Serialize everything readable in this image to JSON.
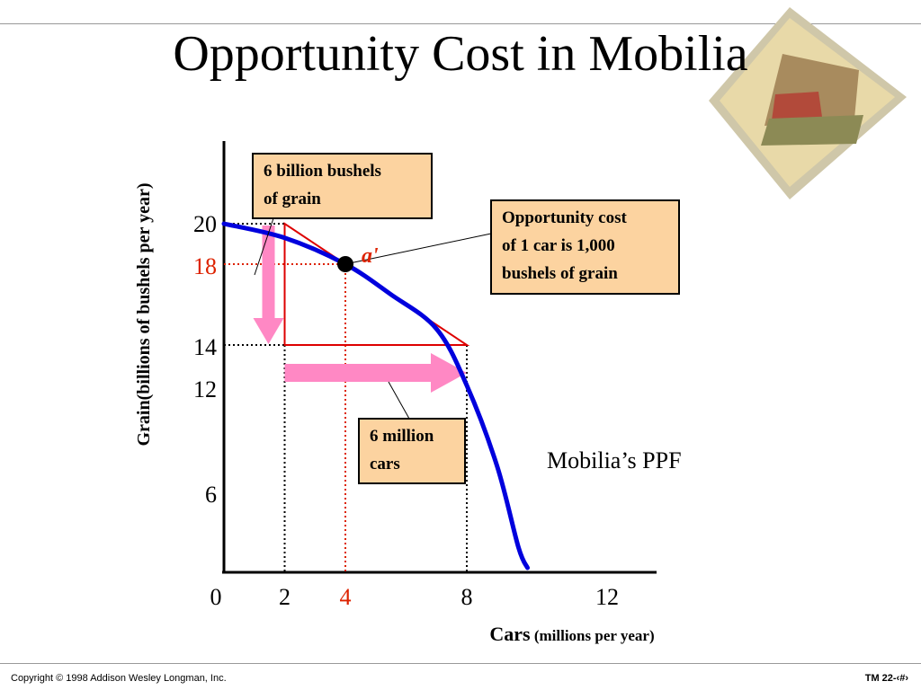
{
  "slide": {
    "title": "Opportunity Cost in Mobilia",
    "copyright": "Copyright © 1998 Addison Wesley Longman, Inc.",
    "slide_number": "TM 22-‹#›"
  },
  "colors": {
    "curve": "#0000dd",
    "triangle": "#dd0000",
    "highlight": "#dd2200",
    "arrow": "#ff88c4",
    "callout_fill": "#fcd3a0"
  },
  "chart_data": {
    "type": "line",
    "title": "Opportunity Cost in Mobilia",
    "xlabel": "Cars",
    "xlabel_unit": "(millions per year)",
    "ylabel": "Grain(billions of bushels per year)",
    "x_ticks": [
      "0",
      "2",
      "4",
      "8",
      "12"
    ],
    "y_ticks": [
      "20",
      "18",
      "14",
      "12",
      "6"
    ],
    "series": [
      {
        "name": "Mobilia’s PPF",
        "points": [
          [
            0,
            20
          ],
          [
            2,
            19.3
          ],
          [
            4,
            18
          ],
          [
            5.5,
            16.5
          ],
          [
            7,
            14.8
          ],
          [
            8,
            12
          ],
          [
            9,
            8
          ],
          [
            9.7,
            4
          ],
          [
            10,
            0
          ]
        ]
      }
    ],
    "point_a": {
      "label": "a'",
      "x": 4,
      "y": 18
    },
    "triangle": [
      [
        2,
        20
      ],
      [
        2,
        14
      ],
      [
        8,
        14
      ]
    ],
    "callouts": {
      "grain": "6 billion bushels of grain",
      "cars": "6 million cars",
      "opportunity": "Opportunity cost of 1 car is 1,000 bushels of grain"
    },
    "ppf_label": "Mobilia’s PPF"
  }
}
